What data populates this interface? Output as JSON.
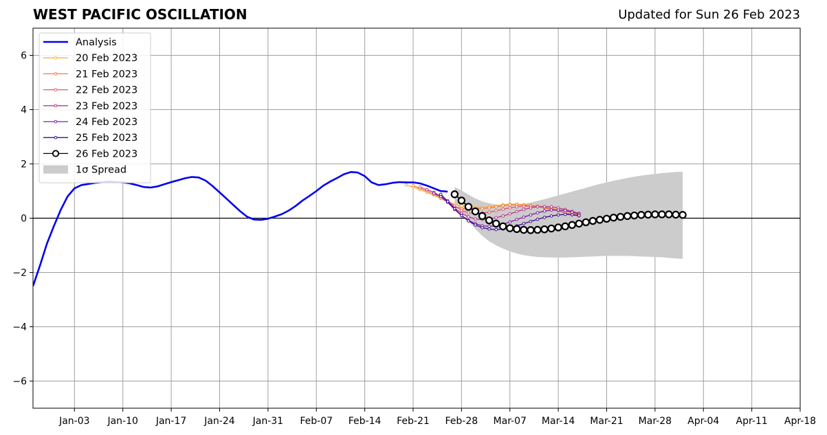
{
  "title": "WEST PACIFIC OSCILLATION",
  "subtitle": "Updated for Sun 26 Feb 2023",
  "chart_data": {
    "type": "line",
    "title": "WEST PACIFIC OSCILLATION",
    "subtitle": "Updated for Sun 26 Feb 2023",
    "x_unit": "date (2022-12-28 to 2023-04-18)",
    "xlim": [
      "2022-12-28",
      "2023-04-18"
    ],
    "ylim": [
      -7,
      7
    ],
    "yticks": [
      -6,
      -4,
      -2,
      0,
      2,
      4,
      6
    ],
    "ytick_labels": [
      "−6",
      "−4",
      "−2",
      "0",
      "2",
      "4",
      "6"
    ],
    "xticks": [
      {
        "date": "2023-01-03",
        "label": "Jan-03"
      },
      {
        "date": "2023-01-10",
        "label": "Jan-10"
      },
      {
        "date": "2023-01-17",
        "label": "Jan-17"
      },
      {
        "date": "2023-01-24",
        "label": "Jan-24"
      },
      {
        "date": "2023-01-31",
        "label": "Jan-31"
      },
      {
        "date": "2023-02-07",
        "label": "Feb-07"
      },
      {
        "date": "2023-02-14",
        "label": "Feb-14"
      },
      {
        "date": "2023-02-21",
        "label": "Feb-21"
      },
      {
        "date": "2023-02-28",
        "label": "Feb-28"
      },
      {
        "date": "2023-03-07",
        "label": "Mar-07"
      },
      {
        "date": "2023-03-14",
        "label": "Mar-14"
      },
      {
        "date": "2023-03-21",
        "label": "Mar-21"
      },
      {
        "date": "2023-03-28",
        "label": "Mar-28"
      },
      {
        "date": "2023-04-04",
        "label": "Apr-04"
      },
      {
        "date": "2023-04-11",
        "label": "Apr-11"
      },
      {
        "date": "2023-04-18",
        "label": "Apr-18"
      }
    ],
    "grid": true,
    "legend_position": "top-left",
    "analysis": {
      "name": "Analysis",
      "color": "#0000ee",
      "points": [
        [
          "2022-12-28",
          -2.5
        ],
        [
          "2022-12-29",
          -1.75
        ],
        [
          "2022-12-30",
          -0.95
        ],
        [
          "2022-12-31",
          -0.3
        ],
        [
          "2023-01-01",
          0.3
        ],
        [
          "2023-01-02",
          0.8
        ],
        [
          "2023-01-03",
          1.1
        ],
        [
          "2023-01-04",
          1.22
        ],
        [
          "2023-01-06",
          1.3
        ],
        [
          "2023-01-08",
          1.35
        ],
        [
          "2023-01-10",
          1.32
        ],
        [
          "2023-01-11",
          1.28
        ],
        [
          "2023-01-12",
          1.22
        ],
        [
          "2023-01-13",
          1.15
        ],
        [
          "2023-01-14",
          1.13
        ],
        [
          "2023-01-15",
          1.17
        ],
        [
          "2023-01-16",
          1.25
        ],
        [
          "2023-01-17",
          1.33
        ],
        [
          "2023-01-18",
          1.4
        ],
        [
          "2023-01-19",
          1.47
        ],
        [
          "2023-01-20",
          1.52
        ],
        [
          "2023-01-21",
          1.5
        ],
        [
          "2023-01-22",
          1.38
        ],
        [
          "2023-01-23",
          1.18
        ],
        [
          "2023-01-24",
          0.95
        ],
        [
          "2023-01-25",
          0.72
        ],
        [
          "2023-01-26",
          0.48
        ],
        [
          "2023-01-27",
          0.25
        ],
        [
          "2023-01-28",
          0.05
        ],
        [
          "2023-01-29",
          -0.05
        ],
        [
          "2023-01-30",
          -0.06
        ],
        [
          "2023-01-31",
          -0.02
        ],
        [
          "2023-02-01",
          0.06
        ],
        [
          "2023-02-02",
          0.15
        ],
        [
          "2023-02-03",
          0.28
        ],
        [
          "2023-02-04",
          0.45
        ],
        [
          "2023-02-05",
          0.65
        ],
        [
          "2023-02-06",
          0.82
        ],
        [
          "2023-02-07",
          1.0
        ],
        [
          "2023-02-08",
          1.2
        ],
        [
          "2023-02-09",
          1.35
        ],
        [
          "2023-02-10",
          1.48
        ],
        [
          "2023-02-11",
          1.62
        ],
        [
          "2023-02-12",
          1.7
        ],
        [
          "2023-02-13",
          1.68
        ],
        [
          "2023-02-14",
          1.55
        ],
        [
          "2023-02-15",
          1.32
        ],
        [
          "2023-02-16",
          1.22
        ],
        [
          "2023-02-17",
          1.25
        ],
        [
          "2023-02-18",
          1.3
        ],
        [
          "2023-02-19",
          1.33
        ],
        [
          "2023-02-20",
          1.32
        ],
        [
          "2023-02-21",
          1.32
        ],
        [
          "2023-02-22",
          1.28
        ],
        [
          "2023-02-23",
          1.2
        ],
        [
          "2023-02-24",
          1.1
        ],
        [
          "2023-02-25",
          1.0
        ],
        [
          "2023-02-26",
          0.98
        ]
      ]
    },
    "forecasts": [
      {
        "name": "20 Feb 2023",
        "start": "2023-02-20",
        "color": "#f9b141",
        "values": [
          1.22,
          1.15,
          1.05,
          0.95,
          0.85,
          0.72,
          0.6,
          0.52,
          0.45,
          0.42,
          0.4,
          0.4,
          0.42,
          0.45,
          0.5,
          0.52,
          0.52,
          0.5,
          0.48,
          0.45,
          0.42,
          0.38,
          0.32,
          0.25,
          0.18,
          0.12
        ]
      },
      {
        "name": "21 Feb 2023",
        "start": "2023-02-21",
        "color": "#f07f3c",
        "values": [
          1.2,
          1.1,
          1.0,
          0.88,
          0.75,
          0.6,
          0.45,
          0.35,
          0.35,
          0.35,
          0.36,
          0.38,
          0.42,
          0.46,
          0.5,
          0.5,
          0.48,
          0.45,
          0.42,
          0.38,
          0.33,
          0.27,
          0.2,
          0.14,
          0.1
        ]
      },
      {
        "name": "22 Feb 2023",
        "start": "2023-02-22",
        "color": "#df5a6e",
        "values": [
          1.15,
          1.05,
          0.95,
          0.82,
          0.65,
          0.45,
          0.28,
          0.2,
          0.18,
          0.19,
          0.22,
          0.27,
          0.33,
          0.38,
          0.42,
          0.44,
          0.45,
          0.43,
          0.4,
          0.35,
          0.28,
          0.2,
          0.12,
          0.08
        ]
      },
      {
        "name": "23 Feb 2023",
        "start": "2023-02-23",
        "color": "#b43a8c",
        "values": [
          1.05,
          0.95,
          0.8,
          0.6,
          0.38,
          0.18,
          0.05,
          -0.03,
          -0.05,
          -0.03,
          0.02,
          0.08,
          0.16,
          0.24,
          0.32,
          0.38,
          0.42,
          0.43,
          0.42,
          0.38,
          0.32,
          0.25,
          0.18
        ]
      },
      {
        "name": "24 Feb 2023",
        "start": "2023-02-24",
        "color": "#7b1fa0",
        "values": [
          0.92,
          0.8,
          0.58,
          0.32,
          0.1,
          -0.08,
          -0.2,
          -0.28,
          -0.3,
          -0.28,
          -0.22,
          -0.14,
          -0.05,
          0.04,
          0.12,
          0.2,
          0.26,
          0.3,
          0.3,
          0.28,
          0.22,
          0.15
        ]
      },
      {
        "name": "25 Feb 2023",
        "start": "2023-02-25",
        "color": "#3b0a8c",
        "values": [
          0.88,
          0.62,
          0.35,
          0.1,
          -0.1,
          -0.25,
          -0.35,
          -0.4,
          -0.42,
          -0.4,
          -0.35,
          -0.28,
          -0.2,
          -0.12,
          -0.04,
          0.03,
          0.08,
          0.12,
          0.14,
          0.13,
          0.1
        ]
      },
      {
        "name": "26 Feb 2023",
        "start": "2023-02-27",
        "color": "#000000",
        "values": [
          0.88,
          0.65,
          0.42,
          0.25,
          0.08,
          -0.08,
          -0.2,
          -0.3,
          -0.37,
          -0.4,
          -0.43,
          -0.44,
          -0.43,
          -0.41,
          -0.38,
          -0.34,
          -0.3,
          -0.25,
          -0.2,
          -0.15,
          -0.1,
          -0.06,
          -0.02,
          0.02,
          0.05,
          0.08,
          0.1,
          0.12,
          0.13,
          0.14,
          0.14,
          0.14,
          0.13,
          0.12
        ]
      }
    ],
    "spread": {
      "name": "1σ Spread",
      "color": "#cccccc",
      "start": "2023-02-27",
      "upper": [
        1.15,
        1.02,
        0.87,
        0.73,
        0.62,
        0.55,
        0.5,
        0.48,
        0.48,
        0.5,
        0.53,
        0.58,
        0.64,
        0.7,
        0.77,
        0.84,
        0.91,
        0.98,
        1.05,
        1.12,
        1.19,
        1.26,
        1.32,
        1.38,
        1.43,
        1.48,
        1.53,
        1.57,
        1.6,
        1.63,
        1.66,
        1.68,
        1.7,
        1.71
      ],
      "lower": [
        0.6,
        0.25,
        -0.1,
        -0.4,
        -0.65,
        -0.85,
        -1.0,
        -1.12,
        -1.22,
        -1.3,
        -1.36,
        -1.4,
        -1.43,
        -1.44,
        -1.45,
        -1.45,
        -1.45,
        -1.44,
        -1.43,
        -1.42,
        -1.41,
        -1.4,
        -1.39,
        -1.39,
        -1.39,
        -1.39,
        -1.4,
        -1.41,
        -1.42,
        -1.43,
        -1.44,
        -1.46,
        -1.48,
        -1.5
      ]
    }
  }
}
